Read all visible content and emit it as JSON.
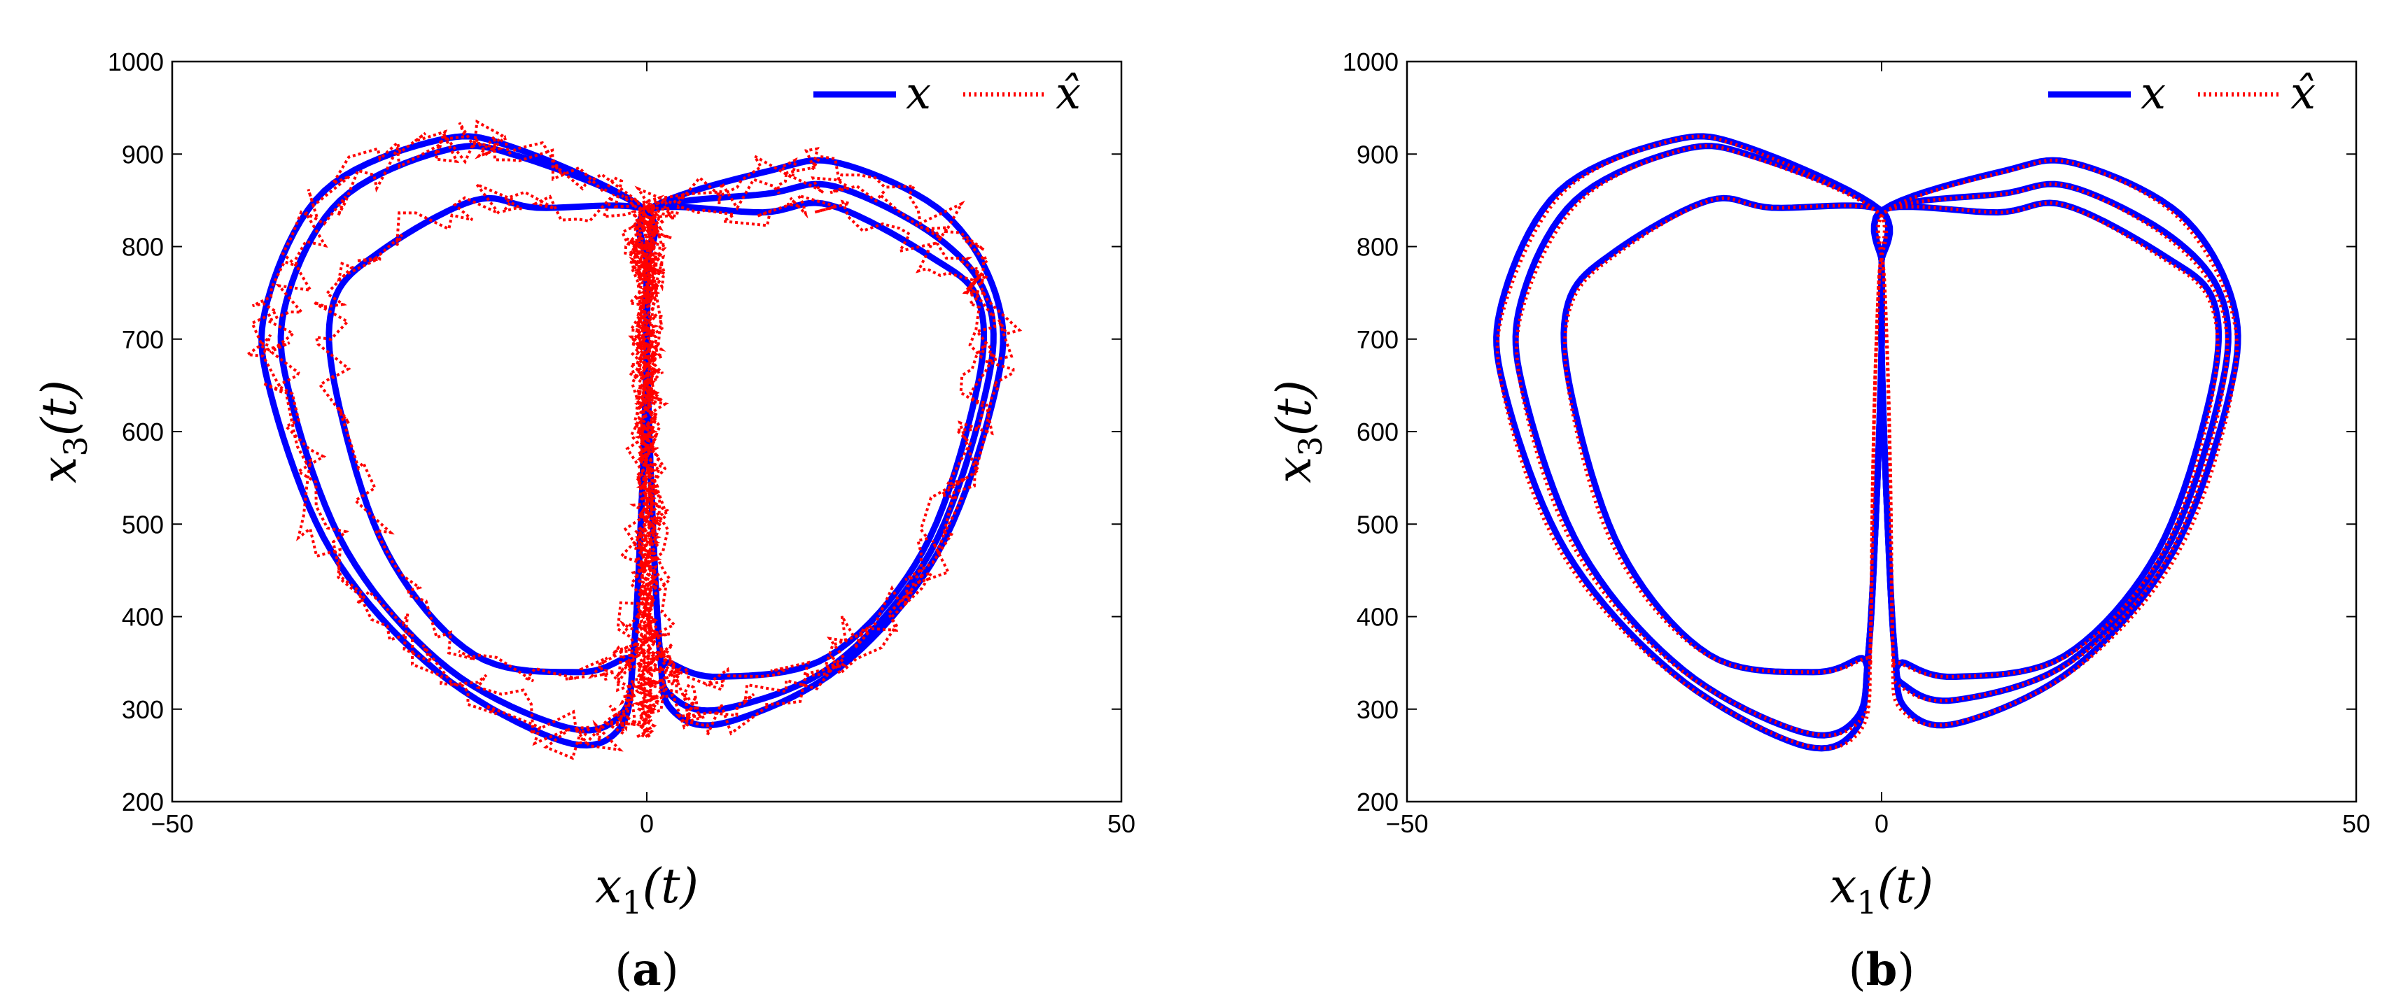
{
  "chart_data": [
    {
      "panel": "(a)",
      "panel_letter": "a",
      "type": "line",
      "xlim": [
        -50,
        50
      ],
      "ylim": [
        200,
        1000
      ],
      "x_ticks": [
        -50,
        0,
        50
      ],
      "y_ticks": [
        200,
        300,
        400,
        500,
        600,
        700,
        800,
        900,
        1000
      ],
      "x_tick_labels": [
        "−50",
        "0",
        "50"
      ],
      "y_tick_labels": [
        "200",
        "300",
        "400",
        "500",
        "600",
        "700",
        "800",
        "900",
        "1000"
      ],
      "xlabel": "x1(t)",
      "xlabel_main": "x",
      "xlabel_sub": "1",
      "xlabel_arg": "(t)",
      "ylabel": "x3(t)",
      "ylabel_main": "x",
      "ylabel_sub": "3",
      "ylabel_arg": "(t)",
      "grid": false,
      "legend_position": "top-right",
      "legend": [
        "x",
        "x̂"
      ],
      "series": [
        {
          "name": "x",
          "style": "solid",
          "color": "#0000ff"
        },
        {
          "name": "x̂",
          "style": "dotted",
          "color": "#ff0000",
          "noise": 3.2
        }
      ],
      "attractor": {
        "x_extent": [
          -42,
          40
        ],
        "y_extent": [
          255,
          925
        ],
        "loops": [
          {
            "side": "left",
            "x_extreme": -40,
            "y_top": 915,
            "y_bottom": 265
          },
          {
            "side": "left",
            "x_extreme": -38,
            "y_top": 905,
            "y_bottom": 280
          },
          {
            "side": "left",
            "x_extreme": -33,
            "y_top": 850,
            "y_bottom": 340
          },
          {
            "side": "right",
            "x_extreme": 37,
            "y_top": 890,
            "y_bottom": 285
          },
          {
            "side": "right",
            "x_extreme": 36,
            "y_top": 865,
            "y_bottom": 300
          },
          {
            "side": "right",
            "x_extreme": 35,
            "y_top": 845,
            "y_bottom": 335
          }
        ]
      }
    },
    {
      "panel": "(b)",
      "panel_letter": "b",
      "type": "line",
      "xlim": [
        -50,
        50
      ],
      "ylim": [
        200,
        1000
      ],
      "x_ticks": [
        -50,
        0,
        50
      ],
      "y_ticks": [
        200,
        300,
        400,
        500,
        600,
        700,
        800,
        900,
        1000
      ],
      "x_tick_labels": [
        "−50",
        "0",
        "50"
      ],
      "y_tick_labels": [
        "200",
        "300",
        "400",
        "500",
        "600",
        "700",
        "800",
        "900",
        "1000"
      ],
      "xlabel": "x1(t)",
      "xlabel_main": "x",
      "xlabel_sub": "1",
      "xlabel_arg": "(t)",
      "ylabel": "x3(t)",
      "ylabel_main": "x",
      "ylabel_sub": "3",
      "ylabel_arg": "(t)",
      "grid": false,
      "legend_position": "top-right",
      "legend": [
        "x",
        "x̂"
      ],
      "series": [
        {
          "name": "x",
          "style": "solid",
          "color": "#0000ff"
        },
        {
          "name": "x̂",
          "style": "dotted",
          "color": "#ff0000",
          "noise": 0
        }
      ],
      "attractor": {
        "x_extent": [
          -42,
          38
        ],
        "y_extent": [
          262,
          915
        ],
        "loops": [
          {
            "side": "left",
            "x_extreme": -40,
            "y_top": 915,
            "y_bottom": 262
          },
          {
            "side": "left",
            "x_extreme": -38,
            "y_top": 905,
            "y_bottom": 275
          },
          {
            "side": "left",
            "x_extreme": -33,
            "y_top": 850,
            "y_bottom": 340
          },
          {
            "side": "right",
            "x_extreme": 37,
            "y_top": 890,
            "y_bottom": 285
          },
          {
            "side": "right",
            "x_extreme": 36,
            "y_top": 865,
            "y_bottom": 310
          },
          {
            "side": "right",
            "x_extreme": 35,
            "y_top": 845,
            "y_bottom": 335
          }
        ]
      }
    }
  ]
}
